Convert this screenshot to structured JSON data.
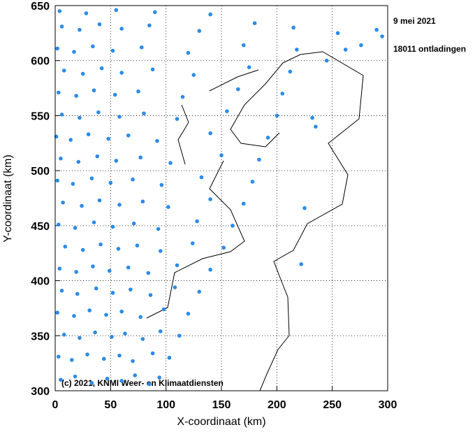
{
  "chart_data": {
    "type": "scatter",
    "date_label": "9 mei 2021",
    "count_label": "18011 ontladingen",
    "copyright": "(c) 2021, KNMI Weer- en Klimaatdiensten",
    "x_label": "X-coordinaat (km)",
    "y_label": "Y-coordinaat (km)",
    "color": "#2b8be6",
    "grid": true,
    "xlim": [
      0,
      300
    ],
    "ylim": [
      300,
      650
    ],
    "xticks": [
      0,
      50,
      100,
      150,
      200,
      250,
      300
    ],
    "yticks": [
      300,
      350,
      400,
      450,
      500,
      550,
      600,
      650
    ],
    "x": [
      5,
      18,
      33,
      47,
      60,
      72,
      85,
      94,
      3,
      15,
      29,
      44,
      58,
      70,
      88,
      103,
      8,
      22,
      36,
      51,
      63,
      79,
      95,
      112,
      2,
      17,
      31,
      46,
      60,
      77,
      98,
      120,
      6,
      20,
      37,
      52,
      68,
      86,
      108,
      130,
      4,
      19,
      34,
      49,
      66,
      84,
      110,
      140,
      9,
      25,
      41,
      57,
      74,
      95,
      124,
      152,
      3,
      18,
      35,
      52,
      71,
      93,
      128,
      160,
      7,
      24,
      40,
      58,
      79,
      102,
      140,
      170,
      2,
      16,
      33,
      50,
      70,
      96,
      132,
      178,
      5,
      21,
      38,
      55,
      77,
      104,
      150,
      184,
      1,
      14,
      30,
      48,
      66,
      92,
      140,
      192,
      6,
      22,
      39,
      58,
      80,
      110,
      155,
      200,
      3,
      19,
      35,
      54,
      75,
      115,
      165,
      205,
      8,
      25,
      42,
      60,
      88,
      125,
      175,
      212,
      2,
      17,
      34,
      52,
      78,
      120,
      170,
      218,
      6,
      22,
      40,
      60,
      85,
      130,
      180,
      215,
      4,
      28,
      55,
      90,
      140,
      225,
      222,
      235,
      232,
      245,
      262,
      276,
      290,
      295,
      255
    ],
    "values": [
      310,
      313,
      307,
      311,
      309,
      314,
      306,
      312,
      331,
      328,
      333,
      329,
      332,
      327,
      334,
      330,
      351,
      348,
      353,
      349,
      352,
      347,
      354,
      350,
      371,
      368,
      373,
      369,
      372,
      367,
      374,
      370,
      391,
      388,
      393,
      389,
      392,
      387,
      394,
      390,
      411,
      408,
      413,
      409,
      412,
      407,
      414,
      410,
      431,
      428,
      433,
      429,
      432,
      427,
      434,
      430,
      451,
      448,
      453,
      449,
      452,
      447,
      454,
      450,
      471,
      468,
      473,
      469,
      472,
      467,
      474,
      470,
      491,
      488,
      493,
      489,
      492,
      487,
      494,
      490,
      511,
      508,
      513,
      509,
      512,
      507,
      514,
      510,
      531,
      528,
      533,
      529,
      532,
      527,
      534,
      530,
      551,
      548,
      553,
      549,
      552,
      547,
      554,
      550,
      571,
      568,
      573,
      569,
      572,
      567,
      574,
      570,
      591,
      588,
      593,
      589,
      592,
      587,
      594,
      590,
      611,
      608,
      613,
      609,
      612,
      607,
      614,
      610,
      631,
      628,
      633,
      629,
      632,
      627,
      634,
      630,
      645,
      643,
      646,
      644,
      642,
      466,
      415,
      540,
      548,
      600,
      610,
      614,
      628,
      622,
      625
    ]
  }
}
